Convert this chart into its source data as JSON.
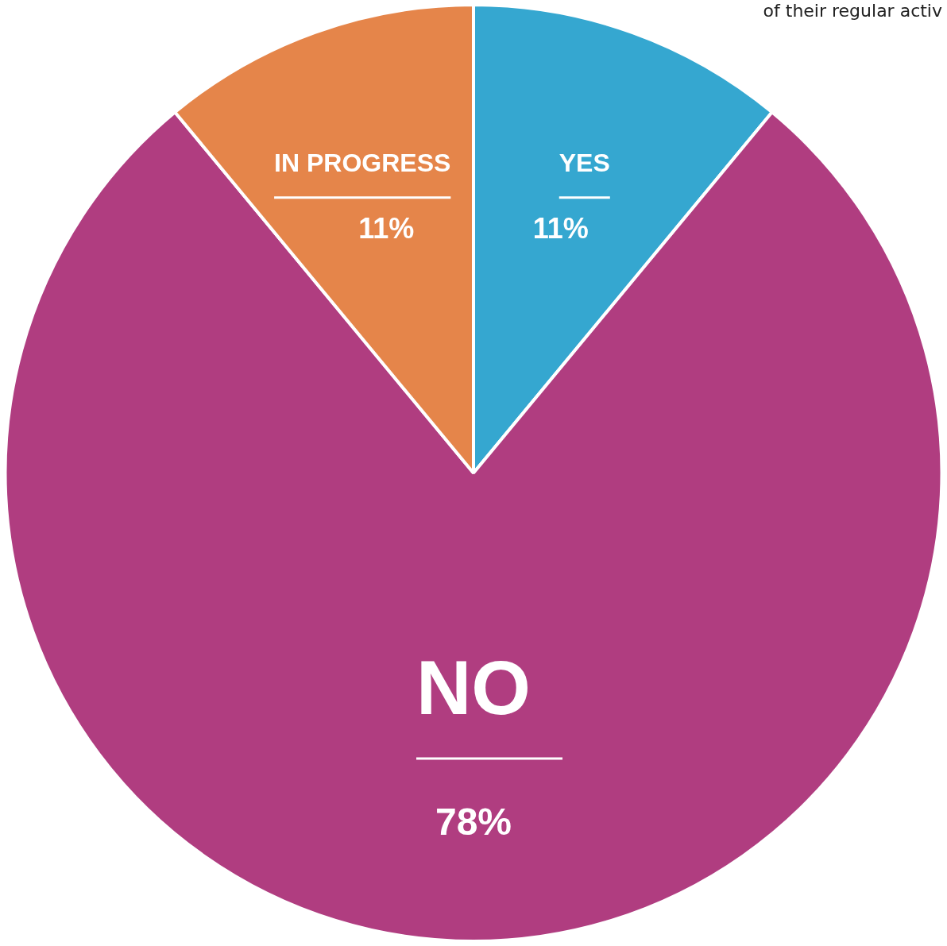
{
  "chart_data": {
    "type": "pie",
    "categories": [
      "YES",
      "NO",
      "IN PROGRESS"
    ],
    "values": [
      11,
      78,
      11
    ],
    "colors": [
      "#35a7d0",
      "#b03d80",
      "#e5854a"
    ],
    "value_labels": [
      "11%",
      "78%",
      "11%"
    ],
    "legend": false,
    "annotations": [
      "of their regular activ"
    ]
  }
}
